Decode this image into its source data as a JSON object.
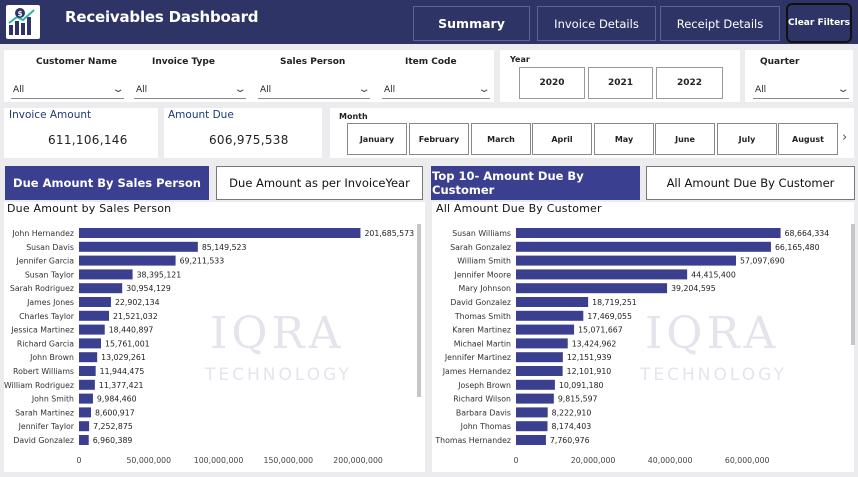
{
  "header": {
    "title": "Receivables Dashboard",
    "nav": [
      "Summary",
      "Invoice Details",
      "Receipt Details"
    ],
    "clear_filters": "Clear Filters"
  },
  "filters": {
    "customer_name": {
      "label": "Customer Name",
      "value": "All"
    },
    "invoice_type": {
      "label": "Invoice Type",
      "value": "All"
    },
    "sales_person": {
      "label": "Sales Person",
      "value": "All"
    },
    "item_code": {
      "label": "Item Code",
      "value": "All"
    },
    "year": {
      "label": "Year",
      "options": [
        "2020",
        "2021",
        "2022"
      ]
    },
    "quarter": {
      "label": "Quarter",
      "value": "All"
    },
    "month": {
      "label": "Month",
      "options": [
        "January",
        "February",
        "March",
        "April",
        "May",
        "June",
        "July",
        "August"
      ]
    }
  },
  "kpis": {
    "invoice_amount": {
      "label": "Invoice Amount",
      "value": "611,106,146"
    },
    "amount_due": {
      "label": "Amount Due",
      "value": "606,975,538"
    }
  },
  "tabs_left": [
    "Due Amount By Sales Person",
    "Due Amount as per InvoiceYear"
  ],
  "tabs_right": [
    "Top 10- Amount Due By Customer",
    "All Amount Due By Customer"
  ],
  "watermark": {
    "line1": "IQRA",
    "line2": "TECHNOLOGY"
  },
  "colors": {
    "header": "#2e3566",
    "bar": "#3a3f8f",
    "accent": "#1e3a78"
  },
  "chart_data": [
    {
      "type": "bar",
      "orientation": "horizontal",
      "title": "Due Amount by Sales Person",
      "categories": [
        "John Hernandez",
        "Susan Davis",
        "Jennifer Garcia",
        "Susan Taylor",
        "Sarah Rodriguez",
        "James Jones",
        "Charles Taylor",
        "Jessica Martinez",
        "Richard Garcia",
        "John Brown",
        "Robert Williams",
        "William Rodriguez",
        "John Smith",
        "Sarah Martinez",
        "Jennifer Taylor",
        "David Gonzalez"
      ],
      "values": [
        201685573,
        85149523,
        69211533,
        38395121,
        30954129,
        22902134,
        21521032,
        18440897,
        15761001,
        13029261,
        11944475,
        11377421,
        9984460,
        8600917,
        7252875,
        6960389
      ],
      "labels": [
        "201,685,573",
        "85,149,523",
        "69,211,533",
        "38,395,121",
        "30,954,129",
        "22,902,134",
        "21,521,032",
        "18,440,897",
        "15,761,001",
        "13,029,261",
        "11,944,475",
        "11,377,421",
        "9,984,460",
        "8,600,917",
        "7,252,875",
        "6,960,389"
      ],
      "xticks": [
        0,
        50000000,
        100000000,
        150000000,
        200000000
      ],
      "xtick_labels": [
        "0",
        "50,000,000",
        "100,000,000",
        "150,000,000",
        "200,000,000"
      ],
      "xlim": [
        0,
        220000000
      ]
    },
    {
      "type": "bar",
      "orientation": "horizontal",
      "title": "All Amount Due By Customer",
      "categories": [
        "Susan Williams",
        "Sarah Gonzalez",
        "William Smith",
        "Jennifer Moore",
        "Mary Johnson",
        "David Gonzalez",
        "Thomas Smith",
        "Karen Martinez",
        "Michael Martin",
        "Jennifer Martinez",
        "James Hernandez",
        "Joseph Brown",
        "Richard Wilson",
        "Barbara Davis",
        "John Thomas",
        "Thomas Hernandez"
      ],
      "values": [
        68664334,
        66165480,
        57097690,
        44415400,
        39204595,
        18719251,
        17469055,
        15071667,
        13424962,
        12151939,
        12101910,
        10091180,
        9815597,
        8222910,
        8174403,
        7760976
      ],
      "labels": [
        "68,664,334",
        "66,165,480",
        "57,097,690",
        "44,415,400",
        "39,204,595",
        "18,719,251",
        "17,469,055",
        "15,071,667",
        "13,424,962",
        "12,151,939",
        "12,101,910",
        "10,091,180",
        "9,815,597",
        "8,222,910",
        "8,174,403",
        "7,760,976"
      ],
      "xticks": [
        0,
        20000000,
        40000000,
        60000000
      ],
      "xtick_labels": [
        "0",
        "20,000,000",
        "40,000,000",
        "60,000,000"
      ],
      "xlim": [
        0,
        75000000
      ]
    }
  ]
}
